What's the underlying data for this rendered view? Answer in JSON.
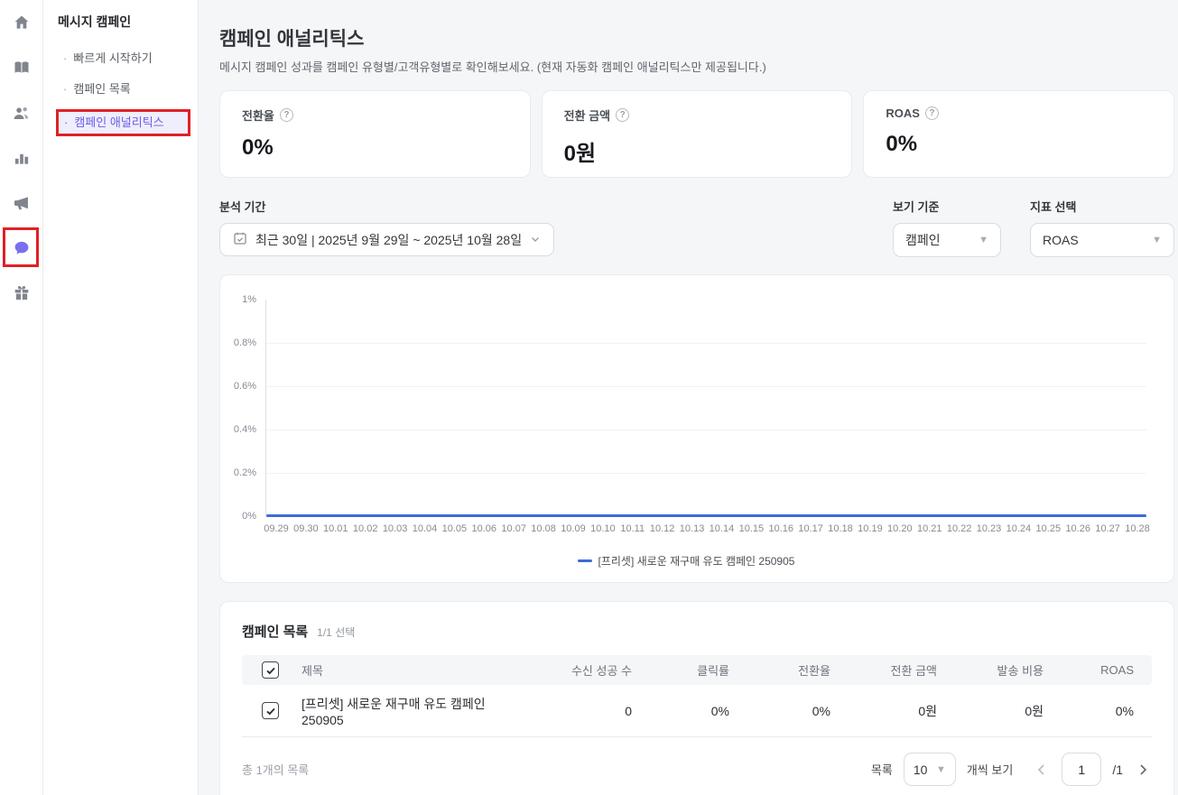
{
  "colors": {
    "accent": "#6a5ee8",
    "accent_bg": "#efeefc",
    "chat_icon": "#7b6ef0",
    "annotation_red": "#df2127",
    "line_blue": "#3a6cd4"
  },
  "sidebar": {
    "icons": [
      "home-icon",
      "book-icon",
      "users-icon",
      "bar-chart-icon",
      "megaphone-icon",
      "chat-bubble-icon",
      "gift-icon"
    ]
  },
  "nav": {
    "header": "메시지 캠페인",
    "bullet": "·",
    "items": [
      {
        "label": "빠르게 시작하기"
      },
      {
        "label": "캠페인 목록"
      },
      {
        "label": "캠페인 애널리틱스"
      }
    ]
  },
  "header": {
    "title": "캠페인 애널리틱스",
    "subtitle": "메시지 캠페인 성과를 캠페인 유형별/고객유형별로 확인해보세요. (현재 자동화 캠페인 애널리틱스만 제공됩니다.)"
  },
  "kpis": [
    {
      "label": "전환율",
      "value": "0%"
    },
    {
      "label": "전환 금액",
      "value": "0원"
    },
    {
      "label": "ROAS",
      "value": "0%"
    }
  ],
  "filters": {
    "period_label": "분석 기간",
    "period_value": "최근 30일 | 2025년 9월 29일 ~ 2025년 10월 28일",
    "view_label": "보기 기준",
    "view_value": "캠페인",
    "metric_label": "지표 선택",
    "metric_value": "ROAS"
  },
  "chart_data": {
    "type": "line",
    "x": [
      "09.29",
      "09.30",
      "10.01",
      "10.02",
      "10.03",
      "10.04",
      "10.05",
      "10.06",
      "10.07",
      "10.08",
      "10.09",
      "10.10",
      "10.11",
      "10.12",
      "10.13",
      "10.14",
      "10.15",
      "10.16",
      "10.17",
      "10.18",
      "10.19",
      "10.20",
      "10.21",
      "10.22",
      "10.23",
      "10.24",
      "10.25",
      "10.26",
      "10.27",
      "10.28"
    ],
    "series": [
      {
        "name": "[프리셋] 새로운 재구매 유도 캠페인 250905",
        "values": [
          0,
          0,
          0,
          0,
          0,
          0,
          0,
          0,
          0,
          0,
          0,
          0,
          0,
          0,
          0,
          0,
          0,
          0,
          0,
          0,
          0,
          0,
          0,
          0,
          0,
          0,
          0,
          0,
          0,
          0
        ],
        "color": "#3a6cd4"
      }
    ],
    "title": "",
    "xlabel": "",
    "ylabel": "",
    "unit": "%",
    "ylim": [
      0,
      1
    ],
    "yticks": [
      "1%",
      "0.8%",
      "0.6%",
      "0.4%",
      "0.2%",
      "0%"
    ],
    "grid": true,
    "legend_position": "bottom"
  },
  "table": {
    "title": "캠페인 목록",
    "selection": "1/1 선택",
    "columns": [
      "제목",
      "수신 성공 수",
      "클릭률",
      "전환율",
      "전환 금액",
      "발송 비용",
      "ROAS"
    ],
    "rows": [
      {
        "checked": true,
        "title": "[프리셋] 새로운 재구매 유도 캠페인 250905",
        "values": [
          "0",
          "0%",
          "0%",
          "0원",
          "0원",
          "0%"
        ]
      }
    ],
    "total": "총 1개의 목록",
    "pagination": {
      "list_label": "목록",
      "page_size": "10",
      "suffix": "개씩 보기",
      "page": "1",
      "total_label": "/1"
    }
  }
}
